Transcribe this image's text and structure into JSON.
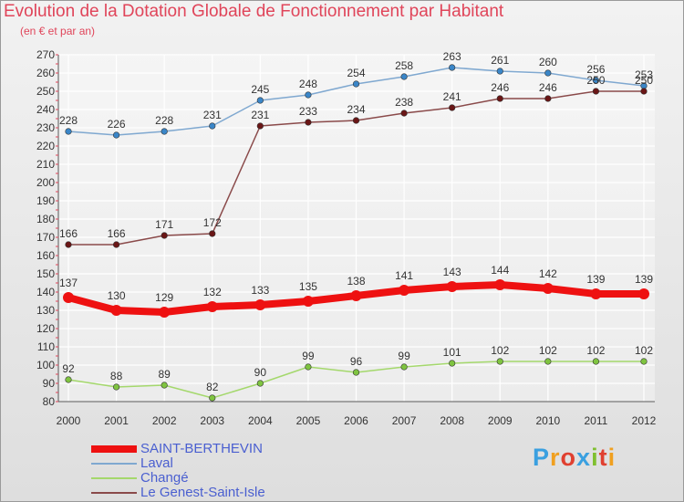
{
  "header": {
    "title": "Evolution de la Dotation Globale de Fonctionnement par Habitant",
    "subtitle": "(en € et par an)"
  },
  "logo": {
    "text": "Proxiti",
    "colors": [
      "#3aa0e0",
      "#f0a020",
      "#e04030",
      "#3aa0e0",
      "#80c030",
      "#e04030",
      "#f0a020"
    ]
  },
  "chart_data": {
    "type": "line",
    "x": [
      "2000",
      "2001",
      "2002",
      "2003",
      "2004",
      "2005",
      "2006",
      "2007",
      "2008",
      "2009",
      "2010",
      "2011",
      "2012"
    ],
    "ylim": [
      80,
      270
    ],
    "yticks": [
      80,
      90,
      100,
      110,
      120,
      130,
      140,
      150,
      160,
      170,
      180,
      190,
      200,
      210,
      220,
      230,
      240,
      250,
      260,
      270
    ],
    "grid": true,
    "legend_position": "bottom-left",
    "series": [
      {
        "name": "SAINT-BERTHEVIN",
        "color": "#ee1111",
        "marker_color": "#ee1111",
        "values": [
          137,
          130,
          129,
          132,
          133,
          135,
          138,
          141,
          143,
          144,
          142,
          139,
          139
        ]
      },
      {
        "name": "Laval",
        "color": "#7fa8d0",
        "marker_color": "#3a86c8",
        "values": [
          228,
          226,
          228,
          231,
          245,
          248,
          254,
          258,
          263,
          261,
          260,
          256,
          253
        ]
      },
      {
        "name": "Changé",
        "color": "#a4d86c",
        "marker_color": "#7fc440",
        "values": [
          92,
          88,
          89,
          82,
          90,
          99,
          96,
          99,
          101,
          102,
          102,
          102,
          102
        ]
      },
      {
        "name": "Le Genest-Saint-Isle",
        "color": "#8a4a4a",
        "marker_color": "#6a1616",
        "values": [
          166,
          166,
          171,
          172,
          231,
          233,
          234,
          238,
          241,
          246,
          246,
          250,
          250
        ]
      }
    ]
  }
}
